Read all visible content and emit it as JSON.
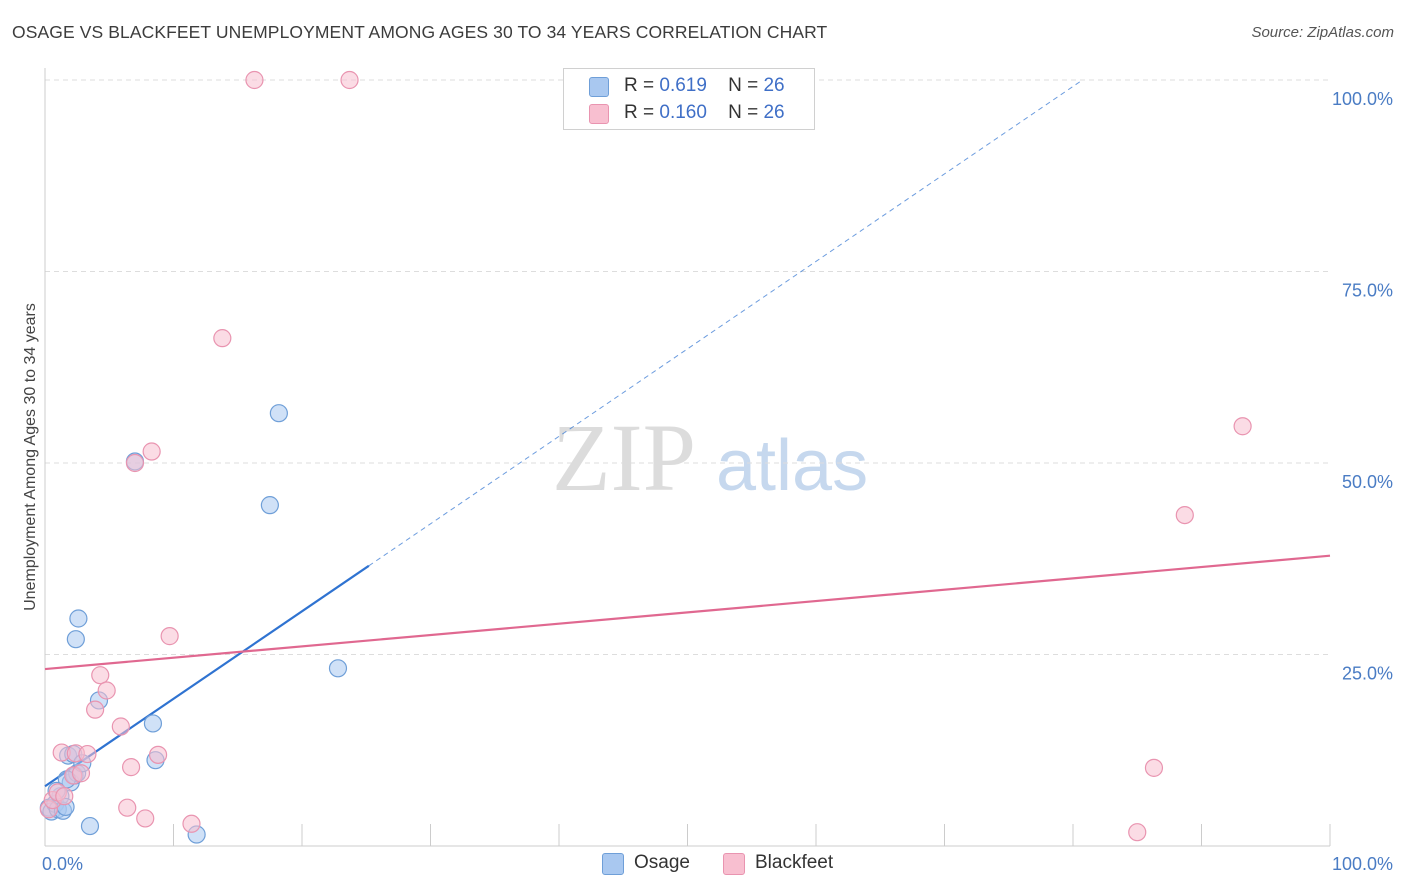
{
  "header": {
    "title": "OSAGE VS BLACKFEET UNEMPLOYMENT AMONG AGES 30 TO 34 YEARS CORRELATION CHART",
    "source": "Source: ZipAtlas.com"
  },
  "watermark": {
    "zip": "ZIP",
    "atlas": "atlas"
  },
  "legend_top": [
    {
      "r_label": "R =",
      "r_value": "0.619",
      "n_label": "N =",
      "n_value": "26"
    },
    {
      "r_label": "R =",
      "r_value": "0.160",
      "n_label": "N =",
      "n_value": "26"
    }
  ],
  "legend_bottom": [
    {
      "label": "Osage"
    },
    {
      "label": "Blackfeet"
    }
  ],
  "colors": {
    "osage_fill": "#a9c8f0",
    "osage_stroke": "#6f9fd8",
    "osage_line": "#2f73d1",
    "blackfeet_fill": "#f8bfd0",
    "blackfeet_stroke": "#e994b0",
    "blackfeet_line": "#e06890",
    "grid": "#dddddd",
    "tick_text": "#4a7cc4"
  },
  "chart_data": {
    "type": "scatter",
    "title": "OSAGE VS BLACKFEET UNEMPLOYMENT AMONG AGES 30 TO 34 YEARS CORRELATION CHART",
    "xlabel": "",
    "ylabel": "Unemployment Among Ages 30 to 34 years",
    "xlim": [
      0,
      100
    ],
    "ylim": [
      0,
      100
    ],
    "x_tick_labels": [
      {
        "value": 0,
        "label": "0.0%"
      },
      {
        "value": 100,
        "label": "100.0%"
      }
    ],
    "y_tick_labels": [
      {
        "value": 25,
        "label": "25.0%"
      },
      {
        "value": 50,
        "label": "50.0%"
      },
      {
        "value": 75,
        "label": "75.0%"
      },
      {
        "value": 100,
        "label": "100.0%"
      }
    ],
    "series": [
      {
        "name": "Osage",
        "r": 0.619,
        "n": 26,
        "trend": {
          "x0": 0,
          "y0": 7.8,
          "x1": 100,
          "y1": 122.0,
          "solid_until_x": 25.2
        },
        "points": [
          [
            0.3,
            5.0
          ],
          [
            0.5,
            4.5
          ],
          [
            0.8,
            5.5
          ],
          [
            1.0,
            4.8
          ],
          [
            1.2,
            6.5
          ],
          [
            1.4,
            4.6
          ],
          [
            1.6,
            5.1
          ],
          [
            1.8,
            11.8
          ],
          [
            2.0,
            8.3
          ],
          [
            2.2,
            12.0
          ],
          [
            2.3,
            9.2
          ],
          [
            2.5,
            9.5
          ],
          [
            2.4,
            27.0
          ],
          [
            2.6,
            29.7
          ],
          [
            2.9,
            10.8
          ],
          [
            3.5,
            2.6
          ],
          [
            4.2,
            19.0
          ],
          [
            7.0,
            50.2
          ],
          [
            8.4,
            16.0
          ],
          [
            8.6,
            11.2
          ],
          [
            11.8,
            1.5
          ],
          [
            17.5,
            44.5
          ],
          [
            18.2,
            56.5
          ],
          [
            22.8,
            23.2
          ],
          [
            1.7,
            8.7
          ],
          [
            0.9,
            7.2
          ]
        ]
      },
      {
        "name": "Blackfeet",
        "r": 0.16,
        "n": 26,
        "trend": {
          "x0": 0,
          "y0": 23.1,
          "x1": 100,
          "y1": 37.9
        },
        "points": [
          [
            0.3,
            4.8
          ],
          [
            0.6,
            6.0
          ],
          [
            1.0,
            7.0
          ],
          [
            1.3,
            12.2
          ],
          [
            1.5,
            6.5
          ],
          [
            2.2,
            9.2
          ],
          [
            2.4,
            12.1
          ],
          [
            2.8,
            9.5
          ],
          [
            3.3,
            12.0
          ],
          [
            3.9,
            17.8
          ],
          [
            4.3,
            22.3
          ],
          [
            4.8,
            20.3
          ],
          [
            5.9,
            15.6
          ],
          [
            6.4,
            5.0
          ],
          [
            6.7,
            10.3
          ],
          [
            7.8,
            3.6
          ],
          [
            8.3,
            51.5
          ],
          [
            8.8,
            11.9
          ],
          [
            9.7,
            27.4
          ],
          [
            11.4,
            2.9
          ],
          [
            13.8,
            66.3
          ],
          [
            16.3,
            100.0
          ],
          [
            23.7,
            100.0
          ],
          [
            85.0,
            1.8
          ],
          [
            86.3,
            10.2
          ],
          [
            88.7,
            43.2
          ]
        ],
        "extra_points": [
          [
            7.0,
            50.0
          ],
          [
            93.2,
            54.8
          ]
        ]
      }
    ]
  }
}
